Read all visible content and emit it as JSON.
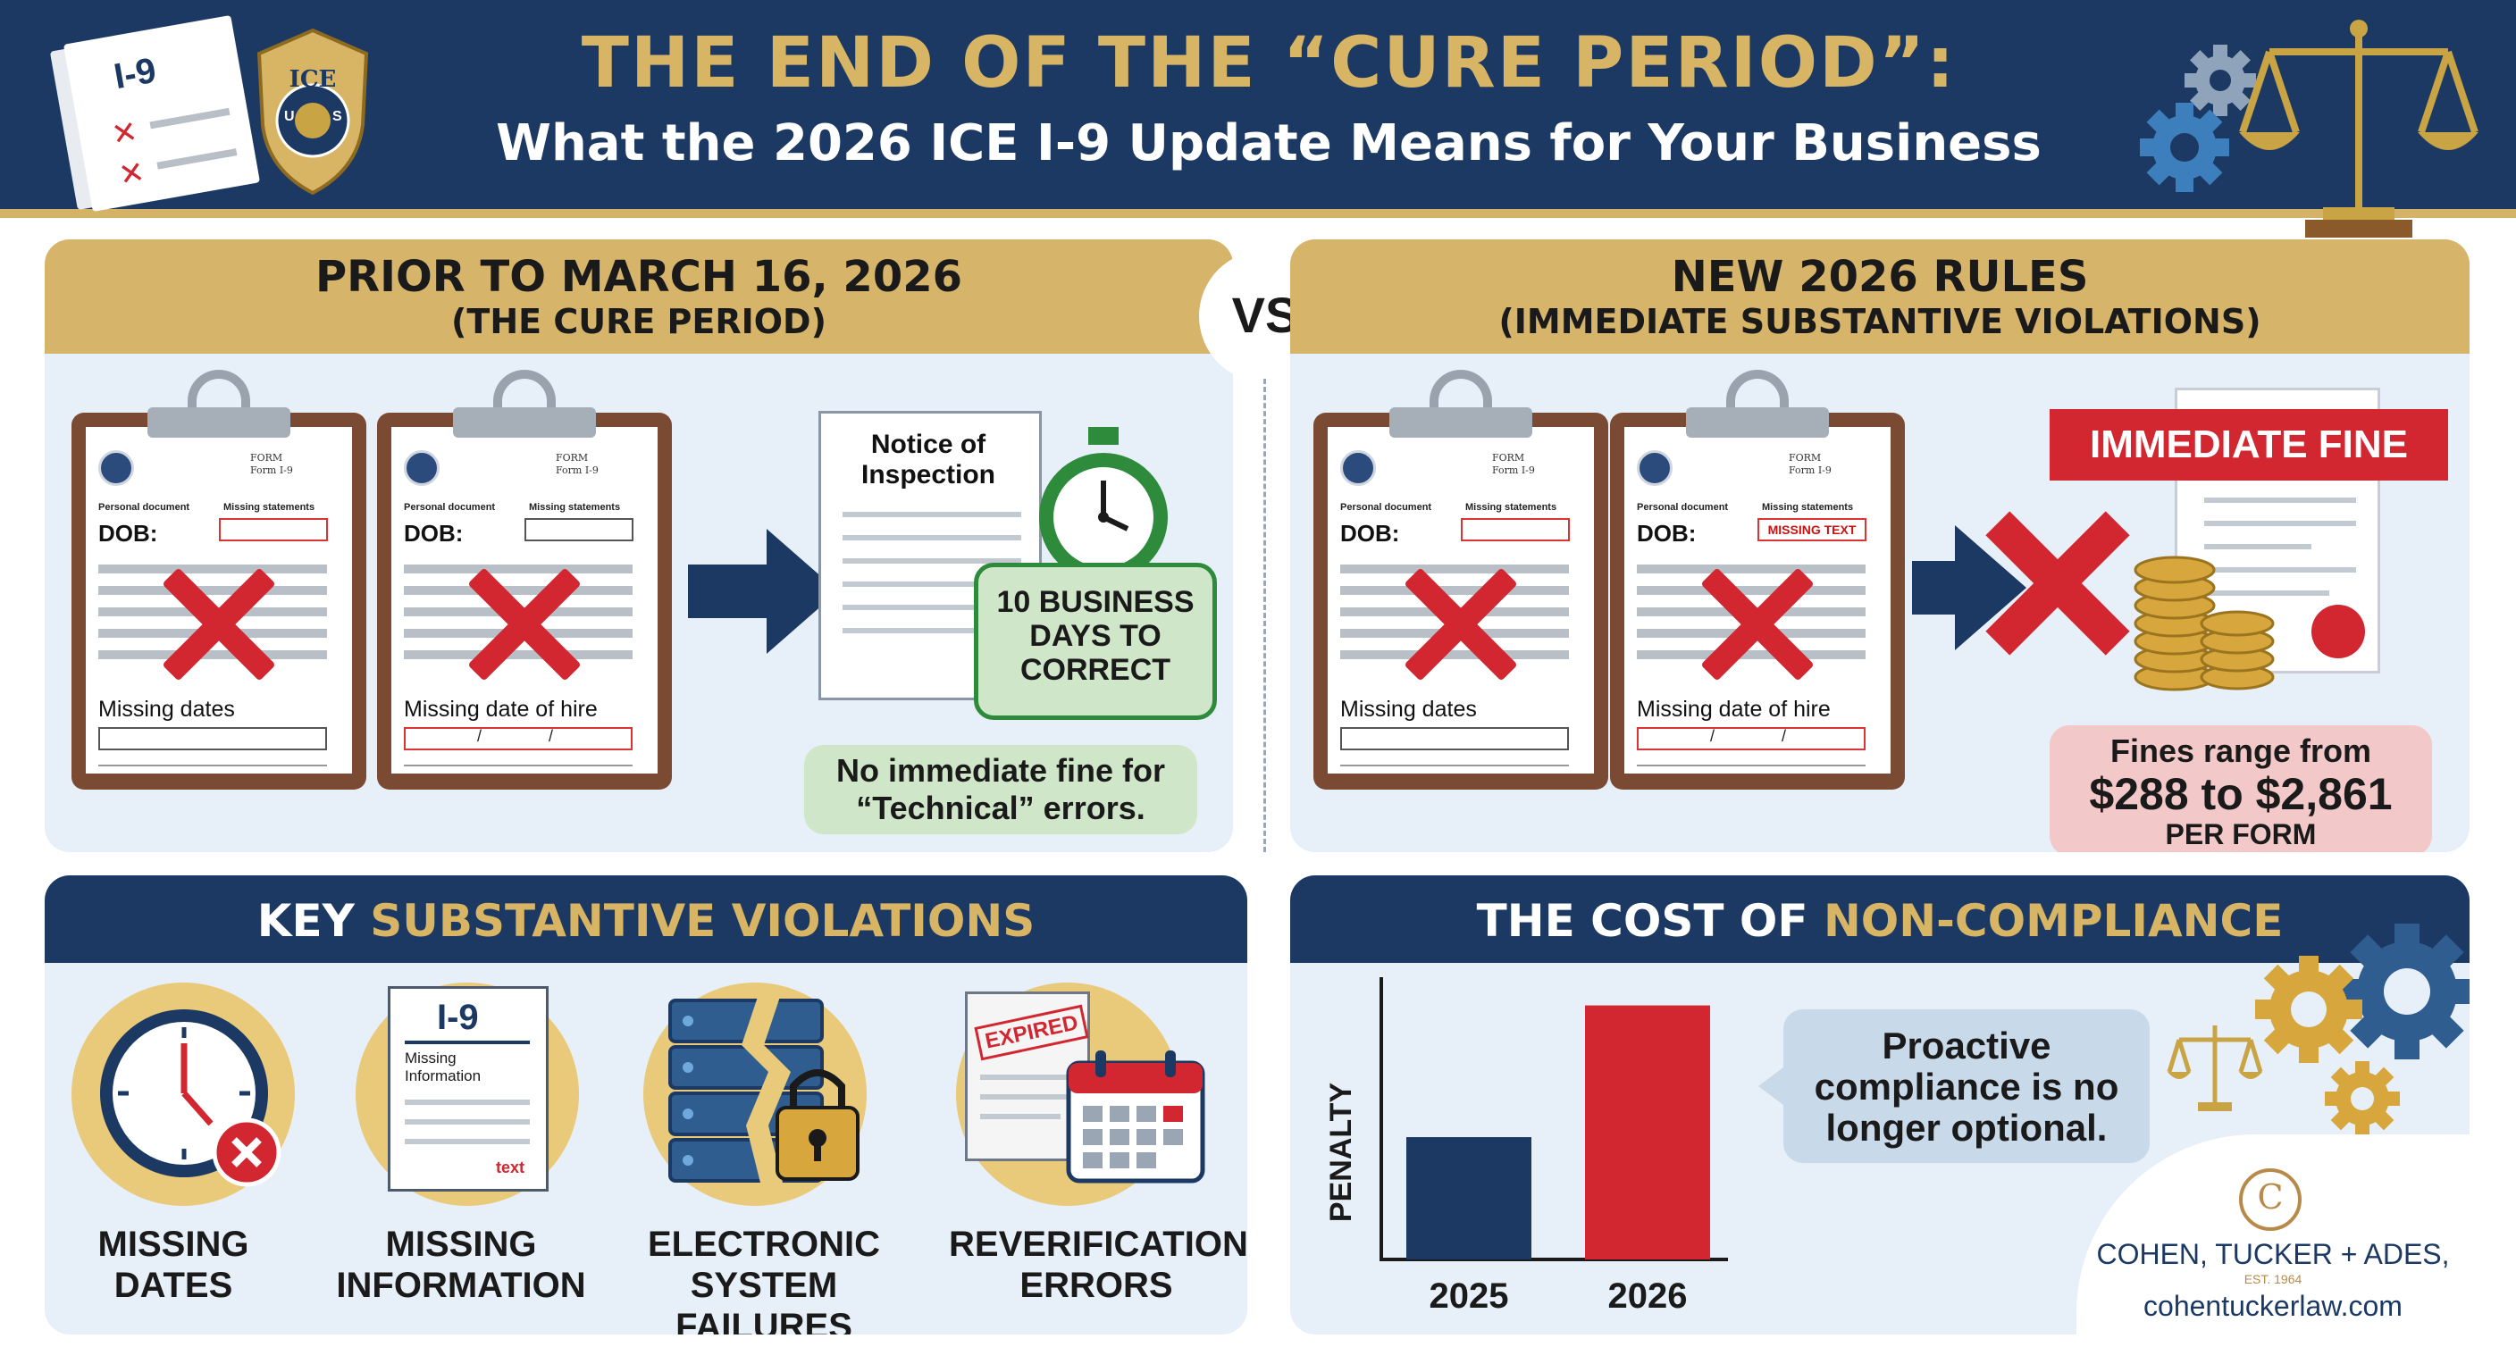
{
  "header": {
    "title_line1": "THE END OF THE “CURE PERIOD”:",
    "title_line2": "What the 2026 ICE I-9 Update Means for Your Business",
    "form_label": "I-9",
    "badge_text": "ICE",
    "badge_letters_left": "U",
    "badge_letters_right": "S"
  },
  "prior": {
    "title": "PRIOR TO MARCH 16, 2026",
    "subtitle": "(THE CURE PERIOD)",
    "forms": [
      {
        "form": "FORM",
        "form_name": "Form I-9",
        "personal": "Personal document",
        "missing": "Missing statements",
        "dob": "DOB:",
        "dob_box": "",
        "caption": "Missing dates"
      },
      {
        "form": "FORM",
        "form_name": "Form I-9",
        "personal": "Personal document",
        "missing": "Missing statements",
        "dob": "DOB:",
        "dob_box": "",
        "caption": "Missing date of hire"
      }
    ],
    "notice": "Notice of Inspection",
    "days": "10 BUSINESS DAYS TO CORRECT",
    "no_fine": "No immediate fine for “Technical” errors."
  },
  "vs_label": "VS",
  "new_rules": {
    "title": "NEW 2026 RULES",
    "subtitle": "(IMMEDIATE SUBSTANTIVE VIOLATIONS)",
    "forms": [
      {
        "form": "FORM",
        "form_name": "Form I-9",
        "personal": "Personal document",
        "missing": "Missing statements",
        "dob": "DOB:",
        "dob_box": "",
        "caption": "Missing dates"
      },
      {
        "form": "FORM",
        "form_name": "Form I-9",
        "personal": "Personal document",
        "missing": "Missing statements",
        "dob": "DOB:",
        "dob_box": "MISSING TEXT",
        "caption": "Missing date of hire"
      }
    ],
    "immediate_fine": "IMMEDIATE FINE",
    "fines_line1": "Fines range from",
    "fines_amount": "$288 to $2,861",
    "fines_line3": "PER FORM"
  },
  "key_violations": {
    "title_plain": "KEY",
    "title_highlight": "SUBSTANTIVE VIOLATIONS",
    "doc_title": "I-9",
    "doc_missing": "Missing Information",
    "doc_text": "text",
    "expired": "EXPIRED",
    "items": [
      {
        "label": "MISSING DATES"
      },
      {
        "label": "MISSING INFORMATION"
      },
      {
        "label": "ELECTRONIC SYSTEM FAILURES"
      },
      {
        "label": "REVERIFICATION ERRORS"
      }
    ]
  },
  "cost": {
    "title_plain": "THE COST OF",
    "title_highlight": "NON-COMPLIANCE",
    "callout": "Proactive compliance is no longer optional."
  },
  "chart_data": {
    "type": "bar",
    "title": "",
    "categories": [
      "2025",
      "2026"
    ],
    "values": [
      26,
      54
    ],
    "ylabel": "PENALTY",
    "xlabel": "",
    "ylim": [
      0,
      60
    ],
    "colors": [
      "#1c3963",
      "#d22630"
    ]
  },
  "footer": {
    "firm": "COHEN, TUCKER + ADES,",
    "est": "EST. 1964",
    "website": "cohentuckerlaw.com"
  },
  "colors": {
    "navy": "#1c3963",
    "gold": "#d6b46a",
    "red": "#d22630",
    "green": "#2e8b3c",
    "panel_bg": "#e7f0f8"
  }
}
